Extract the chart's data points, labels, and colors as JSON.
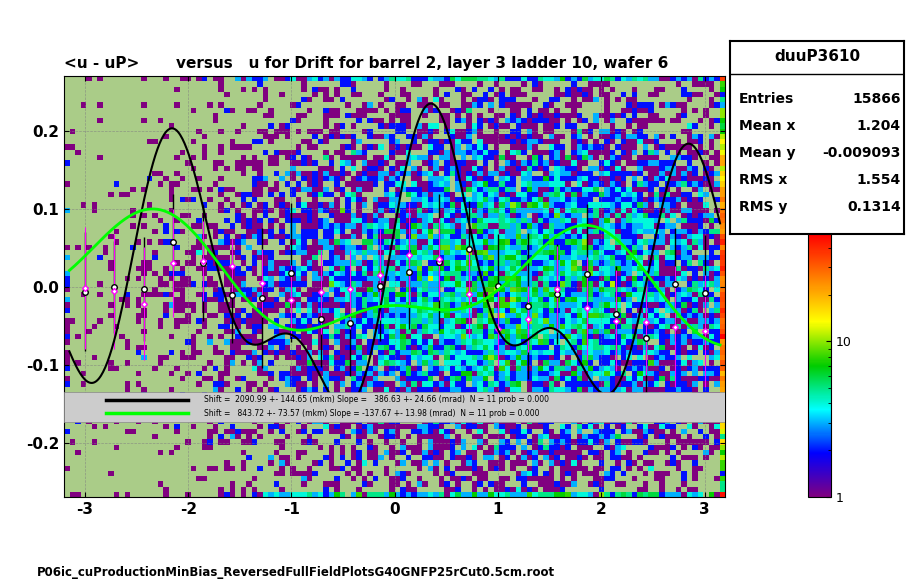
{
  "title": "<u - uP>       versus   u for Drift for barrel 2, layer 3 ladder 10, wafer 6",
  "xlabel": "",
  "ylabel": "",
  "xlim": [
    -3.2,
    3.2
  ],
  "ylim": [
    -0.27,
    0.27
  ],
  "xticks": [
    -3,
    -2,
    -1,
    0,
    1,
    2,
    3
  ],
  "yticks": [
    -0.2,
    -0.1,
    0.0,
    0.1,
    0.2
  ],
  "stats_title": "duuP3610",
  "stats": {
    "Entries": "15866",
    "Mean x": "1.204",
    "Mean y": "-0.009093",
    "RMS x": "1.554",
    "RMS y": "0.1314"
  },
  "colorbar_ticks": [
    "1",
    "10"
  ],
  "legend_black": "Shift =  2090.99 +- 144.65 (mkm) Slope =   386.63 +- 24.66 (mrad)  N = 11 prob = 0.000",
  "legend_green": "Shift =   843.72 +- 73.57 (mkm) Slope = -137.67 +- 13.98 (mrad)  N = 11 prob = 0.000",
  "footer": "P06ic_cuProductionMinBias_ReversedFullFieldPlotsG40GNFP25rCut0.5cm.root",
  "bg_color": "#f0f0f0",
  "plot_bg": "#ffffff",
  "legend_bg": "#d0d0d0"
}
